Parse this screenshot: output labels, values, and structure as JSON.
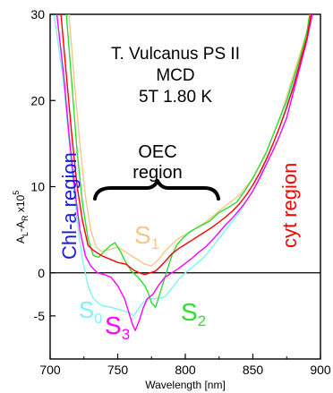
{
  "chart_data": {
    "type": "line",
    "title_lines": [
      "T. Vulcanus PS II",
      "MCD",
      "5T 1.80 K"
    ],
    "xlabel": "Wavelength [nm]",
    "ylabel": {
      "base": "A",
      "sub1": "L",
      "mid": "-A",
      "sub2": "R",
      "tail": " x10",
      "sup": "5"
    },
    "xlim": [
      700,
      900
    ],
    "ylim": [
      -10,
      30
    ],
    "xticks": [
      700,
      750,
      800,
      850,
      900
    ],
    "yticks": [
      -5,
      0,
      10,
      20,
      30
    ],
    "grid": false,
    "annotations": {
      "oec": [
        "OEC",
        "region"
      ],
      "chl": "Chl-a region",
      "cyt": "cyt region"
    },
    "series": [
      {
        "label": "S",
        "sub": "0",
        "color": "#7ff3f3",
        "points": [
          [
            703,
            30
          ],
          [
            710,
            22
          ],
          [
            716,
            12
          ],
          [
            720,
            6
          ],
          [
            724,
            1.5
          ],
          [
            728,
            -1.5
          ],
          [
            732,
            -3
          ],
          [
            738,
            -3.8
          ],
          [
            745,
            -4
          ],
          [
            752,
            -4.3
          ],
          [
            758,
            -4.6
          ],
          [
            762,
            -5
          ],
          [
            765,
            -4.2
          ],
          [
            768,
            -3.6
          ],
          [
            772,
            -3
          ],
          [
            778,
            -3
          ],
          [
            785,
            -2.8
          ],
          [
            790,
            -1.8
          ],
          [
            795,
            -0.8
          ],
          [
            800,
            0
          ],
          [
            805,
            0.6
          ],
          [
            810,
            1.3
          ],
          [
            815,
            2
          ],
          [
            820,
            3
          ],
          [
            825,
            4
          ],
          [
            830,
            5
          ],
          [
            835,
            6
          ],
          [
            840,
            7
          ],
          [
            845,
            8.3
          ],
          [
            850,
            9.5
          ],
          [
            855,
            11.2
          ],
          [
            860,
            13
          ],
          [
            865,
            15
          ],
          [
            870,
            17
          ],
          [
            875,
            19.5
          ],
          [
            880,
            22
          ],
          [
            885,
            25
          ],
          [
            890,
            28
          ],
          [
            893,
            30
          ]
        ]
      },
      {
        "label": "S",
        "sub": "1",
        "color": "#f2c98a",
        "points": [
          [
            714,
            30
          ],
          [
            718,
            22
          ],
          [
            722,
            15
          ],
          [
            726,
            9
          ],
          [
            730,
            5
          ],
          [
            734,
            3
          ],
          [
            738,
            2.5
          ],
          [
            744,
            2.7
          ],
          [
            750,
            3
          ],
          [
            755,
            2.5
          ],
          [
            760,
            2
          ],
          [
            765,
            1.5
          ],
          [
            770,
            1
          ],
          [
            775,
            0.8
          ],
          [
            780,
            1.5
          ],
          [
            785,
            2.5
          ],
          [
            790,
            3.3
          ],
          [
            795,
            4
          ],
          [
            800,
            4.4
          ],
          [
            805,
            4.9
          ],
          [
            810,
            5.4
          ],
          [
            815,
            5.9
          ],
          [
            820,
            6.5
          ],
          [
            825,
            7.2
          ],
          [
            830,
            7.8
          ],
          [
            835,
            8.4
          ],
          [
            840,
            9
          ],
          [
            845,
            10
          ],
          [
            850,
            11
          ],
          [
            855,
            12.5
          ],
          [
            860,
            14
          ],
          [
            865,
            16
          ],
          [
            870,
            18
          ],
          [
            875,
            20.5
          ],
          [
            880,
            23
          ],
          [
            885,
            25.5
          ],
          [
            890,
            28
          ],
          [
            893,
            30
          ]
        ]
      },
      {
        "label": "S",
        "sub": "2",
        "color": "#2fdc2f",
        "points": [
          [
            712,
            30
          ],
          [
            716,
            22
          ],
          [
            720,
            14
          ],
          [
            724,
            8
          ],
          [
            728,
            4
          ],
          [
            732,
            2
          ],
          [
            736,
            1.8
          ],
          [
            740,
            2.5
          ],
          [
            745,
            3.2
          ],
          [
            748,
            3.5
          ],
          [
            752,
            2.5
          ],
          [
            755,
            1.5
          ],
          [
            760,
            0.2
          ],
          [
            765,
            -0.5
          ],
          [
            770,
            -1.5
          ],
          [
            773,
            -2.5
          ],
          [
            775,
            -3.5
          ],
          [
            778,
            -4
          ],
          [
            781,
            -2.5
          ],
          [
            784,
            -1
          ],
          [
            787,
            0.5
          ],
          [
            790,
            2
          ],
          [
            794,
            3.3
          ],
          [
            798,
            4
          ],
          [
            802,
            4.6
          ],
          [
            806,
            5
          ],
          [
            812,
            5.5
          ],
          [
            818,
            6
          ],
          [
            825,
            7
          ],
          [
            832,
            7.6
          ],
          [
            838,
            8.2
          ],
          [
            844,
            9.5
          ],
          [
            850,
            11
          ],
          [
            855,
            12.5
          ],
          [
            860,
            14
          ],
          [
            865,
            16
          ],
          [
            870,
            18
          ],
          [
            875,
            20
          ],
          [
            880,
            22.5
          ],
          [
            885,
            25
          ],
          [
            890,
            28
          ],
          [
            892,
            30
          ]
        ]
      },
      {
        "label": "S",
        "sub": "3",
        "color": "#ff00ff",
        "points": [
          [
            705,
            30
          ],
          [
            710,
            23
          ],
          [
            714,
            16
          ],
          [
            718,
            10
          ],
          [
            722,
            5
          ],
          [
            726,
            2
          ],
          [
            730,
            0.8
          ],
          [
            735,
            0
          ],
          [
            740,
            -0.2
          ],
          [
            745,
            -0.5
          ],
          [
            750,
            -1.5
          ],
          [
            755,
            -3
          ],
          [
            758,
            -4.5
          ],
          [
            761,
            -6
          ],
          [
            763,
            -6.7
          ],
          [
            766,
            -5.5
          ],
          [
            769,
            -4
          ],
          [
            772,
            -3
          ],
          [
            776,
            -2.5
          ],
          [
            780,
            -1.5
          ],
          [
            785,
            -0.5
          ],
          [
            790,
            0
          ],
          [
            795,
            0.5
          ],
          [
            800,
            1.1
          ],
          [
            805,
            1.7
          ],
          [
            810,
            2.4
          ],
          [
            815,
            3
          ],
          [
            820,
            3.8
          ],
          [
            825,
            4.7
          ],
          [
            830,
            5.6
          ],
          [
            835,
            6.4
          ],
          [
            840,
            7.3
          ],
          [
            845,
            8.3
          ],
          [
            850,
            9.5
          ],
          [
            855,
            11
          ],
          [
            860,
            12.6
          ],
          [
            865,
            14.2
          ],
          [
            870,
            16
          ],
          [
            875,
            18
          ],
          [
            880,
            21
          ],
          [
            885,
            24
          ],
          [
            890,
            27
          ],
          [
            894,
            30
          ]
        ]
      },
      {
        "label": "",
        "sub": "",
        "color": "#ff0000",
        "points": [
          [
            708,
            30
          ],
          [
            712,
            23
          ],
          [
            716,
            16
          ],
          [
            720,
            10
          ],
          [
            724,
            6
          ],
          [
            728,
            3.2
          ],
          [
            732,
            2.6
          ],
          [
            738,
            2
          ],
          [
            744,
            1.6
          ],
          [
            750,
            1.2
          ],
          [
            756,
            1
          ],
          [
            762,
            0.3
          ],
          [
            766,
            0
          ],
          [
            770,
            -0.2
          ],
          [
            774,
            0
          ],
          [
            778,
            0.2
          ],
          [
            782,
            0.8
          ],
          [
            786,
            1.5
          ],
          [
            790,
            2.2
          ],
          [
            795,
            2.8
          ],
          [
            800,
            3.3
          ],
          [
            805,
            3.8
          ],
          [
            810,
            4.3
          ],
          [
            815,
            4.8
          ],
          [
            820,
            5.3
          ],
          [
            825,
            5.9
          ],
          [
            830,
            6.5
          ],
          [
            835,
            7.2
          ],
          [
            840,
            8
          ],
          [
            845,
            9
          ],
          [
            850,
            10.2
          ],
          [
            855,
            11.6
          ],
          [
            860,
            13.2
          ],
          [
            865,
            15
          ],
          [
            870,
            17
          ],
          [
            875,
            19.2
          ],
          [
            880,
            21.6
          ],
          [
            885,
            24.5
          ],
          [
            890,
            27.3
          ],
          [
            893,
            30
          ]
        ]
      }
    ]
  },
  "colors": {
    "chl_label": "#1a1ae6",
    "cyt_label": "#ff0000"
  }
}
